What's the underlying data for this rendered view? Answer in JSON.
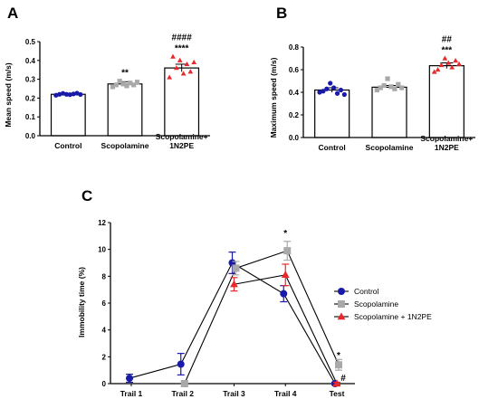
{
  "colors": {
    "control": "#1a1aa8",
    "scopolamine": "#a9a9a9",
    "n2pe": "#e8282a",
    "axis": "#000000"
  },
  "chart_data": [
    {
      "panel": "A",
      "type": "bar",
      "ylabel": "Mean speed (m/s)",
      "ylim": [
        0,
        0.5
      ],
      "yticks": [
        "0.0",
        "0.1",
        "0.2",
        "0.3",
        "0.4",
        "0.5"
      ],
      "categories": [
        "Control",
        "Scopolamine",
        "Scopolamine+\n1N2PE"
      ],
      "values": [
        0.22,
        0.275,
        0.36
      ],
      "errors": [
        0.005,
        0.012,
        0.02
      ],
      "annotations": [
        "",
        "**",
        "####\n****"
      ],
      "points": [
        [
          0.215,
          0.22,
          0.225,
          0.22,
          0.218,
          0.222,
          0.226,
          0.219
        ],
        [
          0.26,
          0.27,
          0.29,
          0.275,
          0.265,
          0.28,
          0.27,
          0.285
        ],
        [
          0.31,
          0.42,
          0.36,
          0.4,
          0.33,
          0.38,
          0.34,
          0.39
        ]
      ]
    },
    {
      "panel": "B",
      "type": "bar",
      "ylabel": "Maximum speed (m/s)",
      "ylim": [
        0,
        0.8
      ],
      "yticks": [
        "0.0",
        "0.2",
        "0.4",
        "0.6",
        "0.8"
      ],
      "categories": [
        "Control",
        "Scopolamine",
        "Scopolamine+\n1N2PE"
      ],
      "values": [
        0.42,
        0.445,
        0.635
      ],
      "errors": [
        0.02,
        0.015,
        0.025
      ],
      "annotations": [
        "",
        "",
        "##\n***"
      ],
      "points": [
        [
          0.4,
          0.41,
          0.43,
          0.48,
          0.44,
          0.39,
          0.42,
          0.38
        ],
        [
          0.42,
          0.44,
          0.46,
          0.52,
          0.45,
          0.43,
          0.47,
          0.44
        ],
        [
          0.58,
          0.6,
          0.64,
          0.7,
          0.66,
          0.62,
          0.68,
          0.65
        ]
      ]
    },
    {
      "panel": "C",
      "type": "line",
      "ylabel": "Immobility time (%)",
      "ylim": [
        0,
        12
      ],
      "yticks": [
        "0",
        "2",
        "4",
        "6",
        "8",
        "10",
        "12"
      ],
      "categories": [
        "Trail 1",
        "Trail 2",
        "Trail 3",
        "Trail 4",
        "Test"
      ],
      "series": [
        {
          "name": "Control",
          "values": [
            0.4,
            1.45,
            9.0,
            6.7,
            0.0
          ],
          "errors": [
            0.3,
            0.8,
            0.8,
            0.6,
            0.1
          ]
        },
        {
          "name": "Scopolamine",
          "values": [
            null,
            0.0,
            8.6,
            9.9,
            1.4
          ],
          "errors": [
            0,
            0.2,
            0.5,
            0.7,
            0.4
          ]
        },
        {
          "name": "Scopolamine + 1N2PE",
          "values": [
            null,
            null,
            7.4,
            8.1,
            0.0
          ],
          "errors": [
            0,
            0,
            0.5,
            0.8,
            0.1
          ]
        }
      ],
      "annotations": {
        "Trail 4": "*",
        "Test": [
          "*",
          "#"
        ]
      },
      "legend_position": "right"
    }
  ]
}
